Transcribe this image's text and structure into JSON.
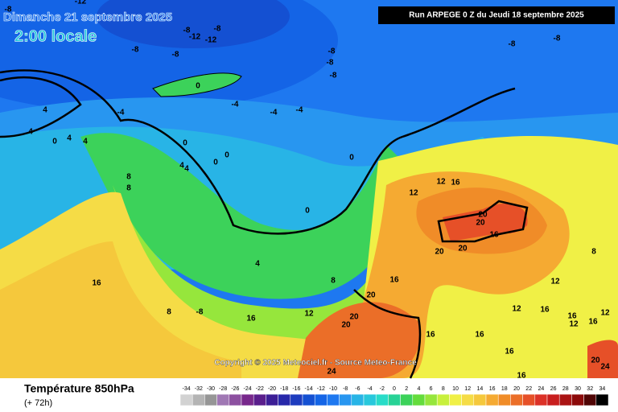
{
  "header": {
    "date": "Dimanche 21 septembre 2025",
    "local_time": "2:00 locale",
    "run": "Run ARPEGE 0 Z du Jeudi 18 septembre 2025"
  },
  "map": {
    "contour_labels": [
      -8,
      -12,
      -8,
      -12,
      -12,
      -8,
      -8,
      -8,
      -8,
      -8,
      -8,
      -8,
      -8,
      0,
      -4,
      -4,
      -4,
      -4,
      4,
      4,
      0,
      4,
      4,
      0,
      0,
      0,
      4,
      4,
      0,
      0,
      8,
      8,
      4,
      16,
      16,
      8,
      -8,
      8,
      12,
      16,
      20,
      20,
      20,
      20,
      20,
      24,
      12,
      12,
      16,
      20,
      20,
      16,
      16,
      16,
      16,
      12,
      16,
      12,
      12,
      16,
      16,
      8,
      12,
      16,
      20,
      24
    ],
    "copyright": "Copyright © 2025 Meteociel.fr - Source Meteo-France"
  },
  "footer": {
    "title": "Température 850hPa",
    "lead": "(+ 72h)"
  },
  "scale": {
    "values": [
      -34,
      -32,
      -30,
      -28,
      -26,
      -24,
      -22,
      -20,
      -18,
      -16,
      -14,
      -12,
      -10,
      -8,
      -6,
      -4,
      -2,
      0,
      2,
      4,
      6,
      8,
      10,
      12,
      14,
      16,
      18,
      20,
      22,
      24,
      26,
      28,
      30,
      32,
      34
    ],
    "colors": [
      "#d2d2d2",
      "#b4b4b4",
      "#969696",
      "#a078b4",
      "#8c50a0",
      "#78288c",
      "#5a1e8c",
      "#3c1e96",
      "#2828aa",
      "#1e3cbe",
      "#1450d2",
      "#1464e6",
      "#1e78f0",
      "#2896f0",
      "#28b4e6",
      "#28c8dc",
      "#28dcc8",
      "#28d296",
      "#3cd25a",
      "#64dc3c",
      "#96e63c",
      "#c8f03c",
      "#f0f046",
      "#f5dc46",
      "#f5c83c",
      "#f5aa32",
      "#f08c28",
      "#eb6e28",
      "#e65028",
      "#dc3228",
      "#c81e1e",
      "#aa1414",
      "#8c0a0a",
      "#500505",
      "#000000"
    ]
  }
}
